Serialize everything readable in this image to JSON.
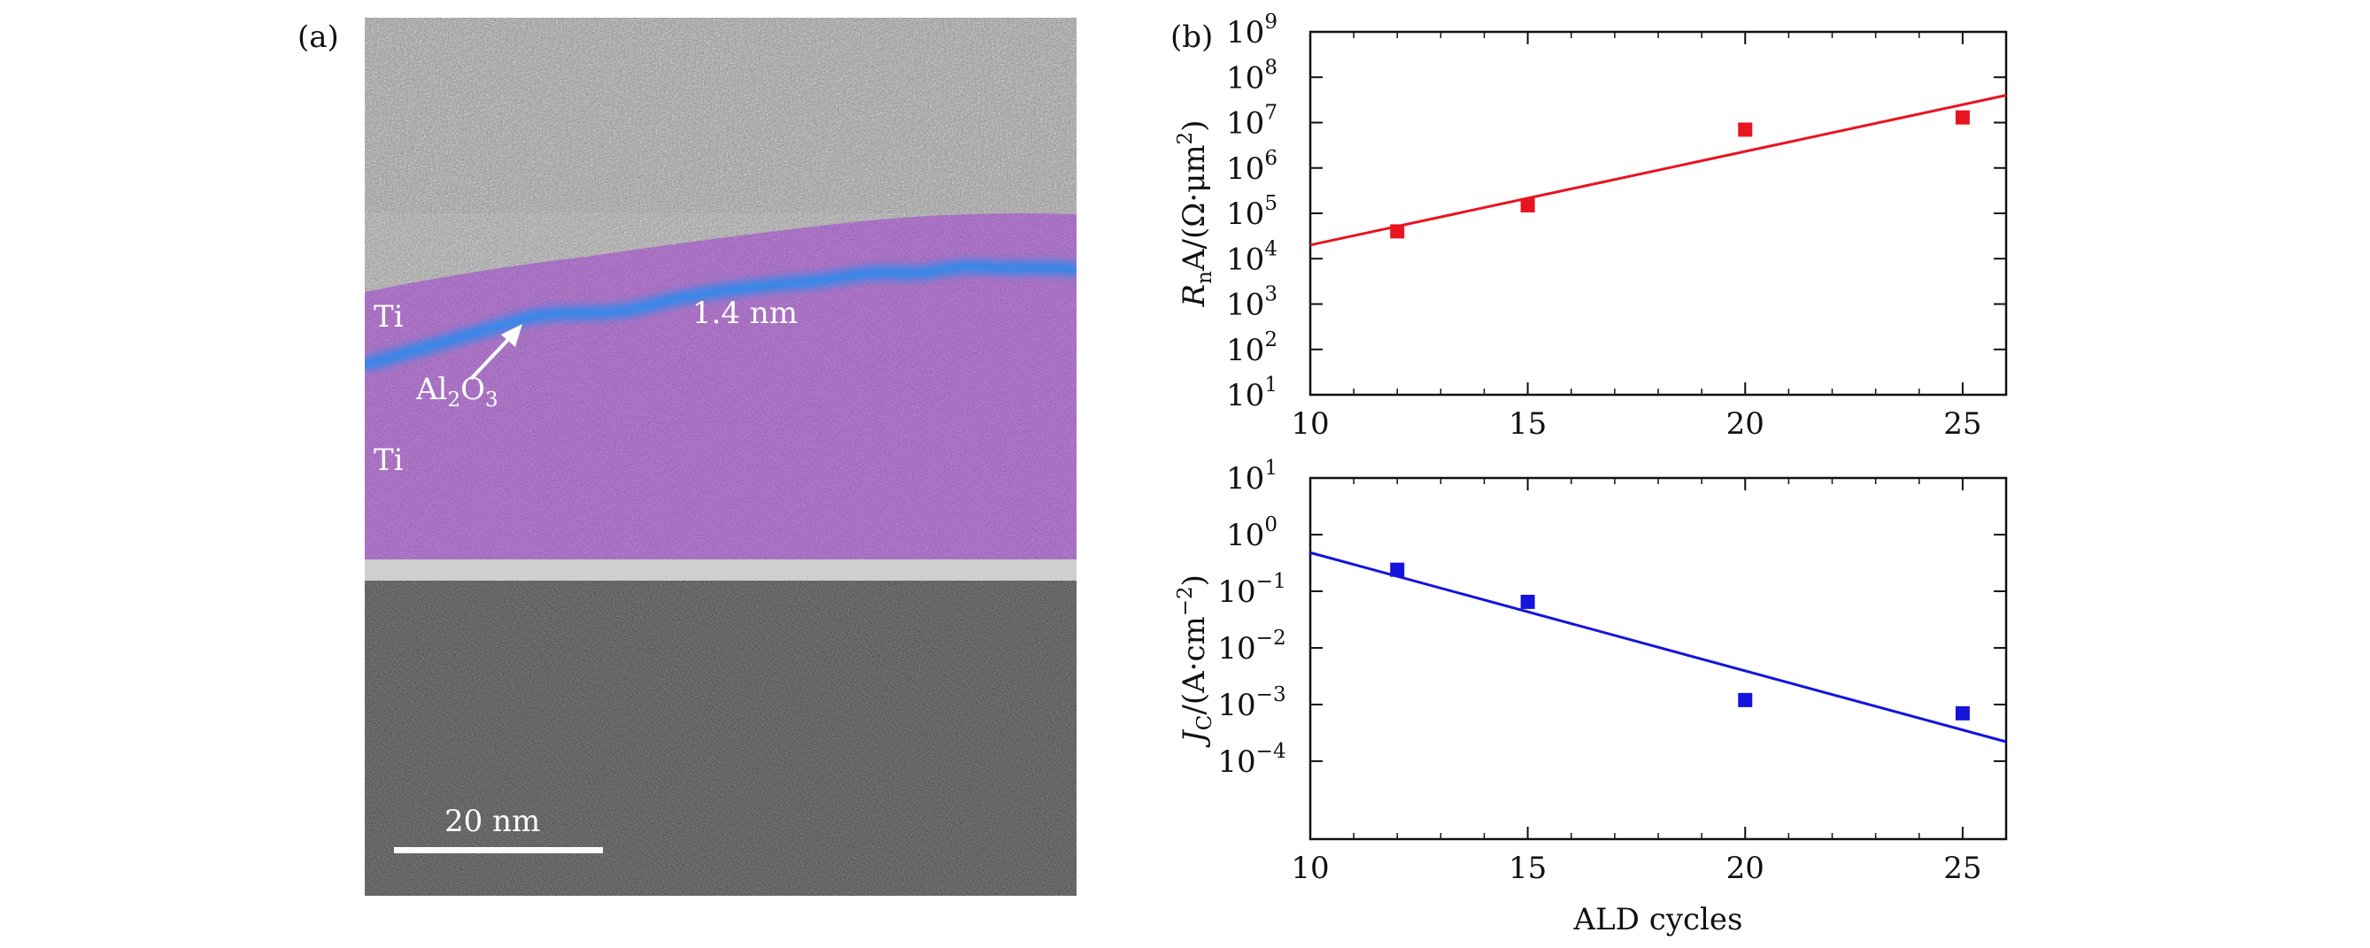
{
  "figure": {
    "panel_a_label": "(a)",
    "panel_b_label": "(b)"
  },
  "tem_image": {
    "labels": {
      "top_ti": "Ti",
      "thickness": "1.4 nm",
      "oxide_main": "Al",
      "oxide_sub1": "2",
      "oxide_o": "O",
      "oxide_sub2": "3",
      "bottom_ti": "Ti",
      "scale_bar": "20 nm"
    },
    "colors": {
      "ti_overlay": "#a15fc0",
      "oxide_overlay": "#3f86e6"
    }
  },
  "chart_data": [
    {
      "type": "scatter",
      "title": "",
      "xlabel": "",
      "ylabel_parts": {
        "main": "R",
        "sub": "n",
        "rest": "A/(Ω·μm",
        "sup": "2",
        "end": ")"
      },
      "x_scale": "linear",
      "y_scale": "log",
      "xlim": [
        10,
        26
      ],
      "ylim": [
        10,
        1000000000
      ],
      "x_ticks": [
        10,
        15,
        20,
        25
      ],
      "y_tick_exponents": [
        1,
        2,
        3,
        4,
        5,
        6,
        7,
        8,
        9
      ],
      "grid": false,
      "series": [
        {
          "color": "#e8141e",
          "x": [
            12,
            15,
            20,
            25
          ],
          "y": [
            40000,
            150000,
            7000000,
            13000000
          ],
          "fit_line": {
            "x": [
              10,
              26
            ],
            "y": [
              20000,
              40000000
            ]
          }
        }
      ]
    },
    {
      "type": "scatter",
      "title": "",
      "xlabel": "ALD cycles",
      "ylabel_parts": {
        "main": "J",
        "sub": "C",
        "rest": "/(A·cm",
        "sup": "−2",
        "end": ")"
      },
      "x_scale": "linear",
      "y_scale": "log",
      "xlim": [
        10,
        26
      ],
      "ylim": [
        4.2e-06,
        10
      ],
      "x_ticks": [
        10,
        15,
        20,
        25
      ],
      "y_tick_exponents": [
        -4,
        -3,
        -2,
        -1,
        0,
        1
      ],
      "grid": false,
      "series": [
        {
          "color": "#1414dc",
          "x": [
            12,
            15,
            20,
            25
          ],
          "y": [
            0.24,
            0.065,
            0.0012,
            0.0007
          ],
          "fit_line": {
            "x": [
              10,
              26
            ],
            "y": [
              0.48,
              0.00022
            ]
          }
        }
      ]
    }
  ]
}
